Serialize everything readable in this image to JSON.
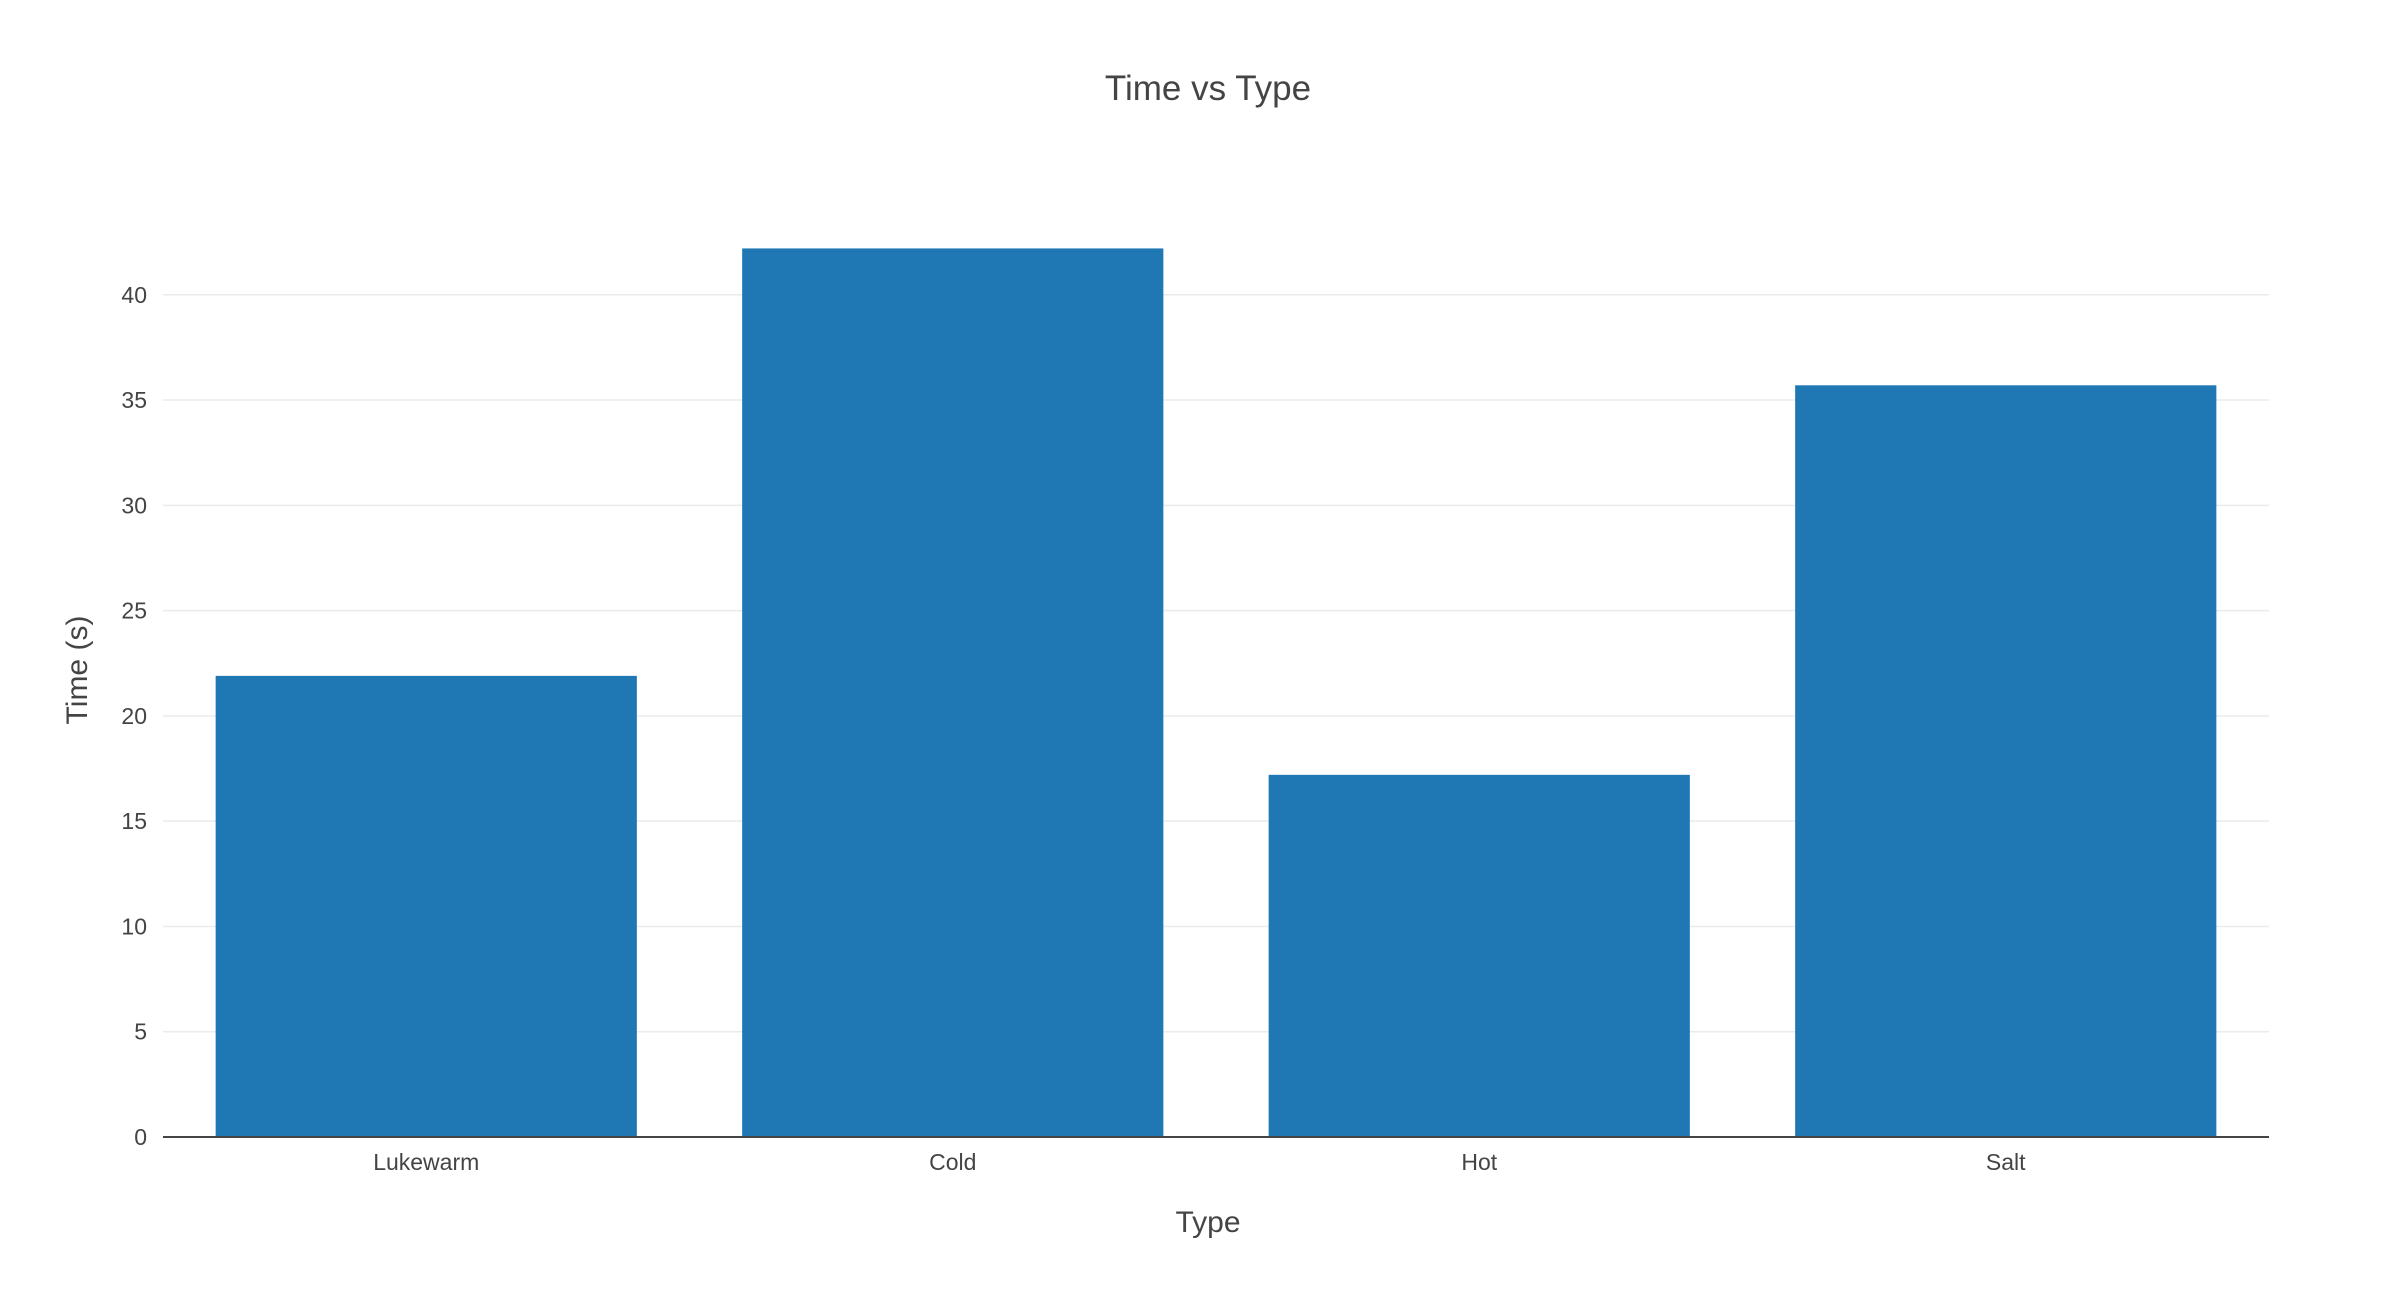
{
  "chart_data": {
    "type": "bar",
    "title": "Time vs Type",
    "xlabel": "Type",
    "ylabel": "Time (s)",
    "categories": [
      "Lukewarm",
      "Cold",
      "Hot",
      "Salt"
    ],
    "values": [
      21.9,
      42.2,
      17.2,
      35.7
    ],
    "ylim": [
      0,
      44.5
    ],
    "yticks": [
      0,
      5,
      10,
      15,
      20,
      25,
      30,
      35,
      40
    ],
    "grid": true,
    "legend": "none",
    "colors": {
      "bar": "#1f77b4",
      "text": "#444444",
      "grid": "#ebebeb",
      "axis": "#444444"
    }
  }
}
